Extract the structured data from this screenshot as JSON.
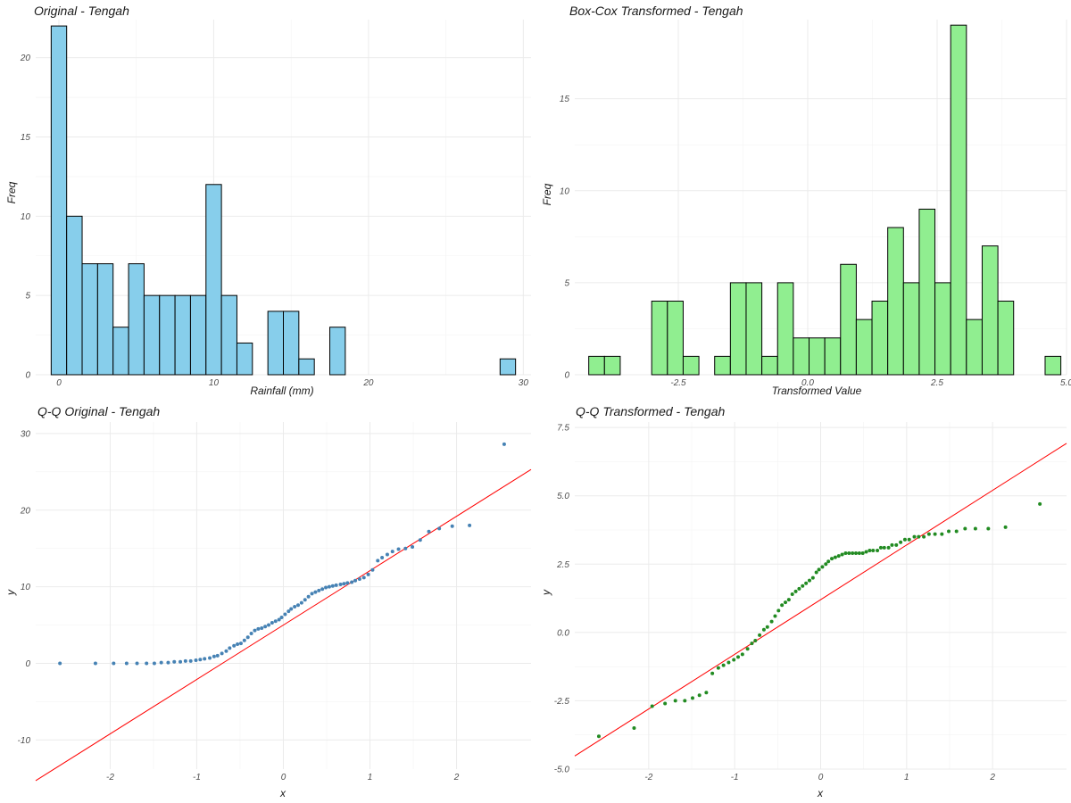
{
  "chart_data": [
    {
      "id": "hist-original",
      "type": "bar",
      "title": "Original - Tengah",
      "xlabel": "Rainfall (mm)",
      "ylabel": "Freq",
      "fill_color": "#87CEEB",
      "bin_width": 1.0,
      "bins_start": -0.5,
      "values": [
        22,
        10,
        7,
        7,
        3,
        7,
        5,
        5,
        5,
        5,
        12,
        5,
        2,
        0,
        4,
        4,
        1,
        0,
        3,
        0,
        0,
        0,
        0,
        0,
        0,
        0,
        0,
        0,
        0,
        1
      ],
      "xlim": [
        -1.5,
        30.5
      ],
      "ylim": [
        0,
        22.4
      ],
      "x_ticks": [
        0,
        10,
        20,
        30
      ],
      "x_tick_labels": [
        "0",
        "10",
        "20",
        "30"
      ],
      "y_ticks": [
        0,
        5,
        10,
        15,
        20
      ],
      "y_tick_labels": [
        "0",
        "5",
        "10",
        "15",
        "20"
      ],
      "grid": true
    },
    {
      "id": "hist-transformed",
      "type": "bar",
      "title": "Box-Cox Transformed - Tengah",
      "xlabel": "Transformed Value",
      "ylabel": "Freq",
      "fill_color": "#90EE90",
      "bin_width": 0.304,
      "bins_start": -4.23,
      "values": [
        1,
        1,
        0,
        0,
        4,
        4,
        1,
        0,
        1,
        5,
        5,
        1,
        5,
        2,
        2,
        2,
        6,
        3,
        4,
        8,
        5,
        9,
        5,
        19,
        3,
        7,
        4,
        0,
        0,
        1
      ],
      "xlim": [
        -4.5,
        5.0
      ],
      "ylim": [
        0,
        19.3
      ],
      "x_ticks": [
        -2.5,
        0.0,
        2.5,
        5.0
      ],
      "x_tick_labels": [
        "-2.5",
        "0.0",
        "2.5",
        "5.0"
      ],
      "y_ticks": [
        0,
        5,
        10,
        15
      ],
      "y_tick_labels": [
        "0",
        "5",
        "10",
        "15"
      ],
      "grid": true
    },
    {
      "id": "qq-original",
      "type": "scatter",
      "title": "Q-Q Original - Tengah",
      "xlabel": "x",
      "ylabel": "y",
      "point_color": "#4682B4",
      "line_color": "#FF0000",
      "line": {
        "intercept": 5.0,
        "slope": 7.1
      },
      "series": [
        {
          "x": [
            -2.58,
            -2.17,
            -1.96,
            -1.81,
            -1.69,
            -1.58,
            -1.49,
            -1.41,
            -1.33,
            -1.26,
            -1.19,
            -1.13,
            -1.07,
            -1.01,
            -0.96,
            -0.91,
            -0.85,
            -0.8,
            -0.76,
            -0.71,
            -0.66,
            -0.62,
            -0.57,
            -0.53,
            -0.49,
            -0.45,
            -0.41,
            -0.37,
            -0.33,
            -0.29,
            -0.25,
            -0.21,
            -0.17,
            -0.13,
            -0.09,
            -0.05,
            -0.02,
            0.02,
            0.06,
            0.09,
            0.13,
            0.17,
            0.21,
            0.25,
            0.29,
            0.33,
            0.37,
            0.41,
            0.45,
            0.49,
            0.53,
            0.57,
            0.61,
            0.66,
            0.7,
            0.74,
            0.79,
            0.83,
            0.88,
            0.93,
            0.98,
            1.03,
            1.09,
            1.14,
            1.2,
            1.26,
            1.33,
            1.41,
            1.49,
            1.58,
            1.68,
            1.8,
            1.95,
            2.15,
            2.55
          ],
          "y": [
            0.0,
            0.0,
            0.0,
            0.0,
            0.0,
            0.0,
            0.0,
            0.1,
            0.1,
            0.2,
            0.2,
            0.3,
            0.3,
            0.4,
            0.5,
            0.6,
            0.7,
            0.9,
            1.0,
            1.3,
            1.6,
            2.0,
            2.3,
            2.5,
            2.6,
            3.0,
            3.4,
            3.9,
            4.3,
            4.5,
            4.6,
            4.8,
            5.0,
            5.3,
            5.5,
            5.7,
            6.0,
            6.4,
            6.8,
            7.1,
            7.4,
            7.6,
            7.9,
            8.3,
            8.7,
            9.1,
            9.3,
            9.5,
            9.7,
            9.9,
            10.0,
            10.1,
            10.2,
            10.3,
            10.4,
            10.5,
            10.6,
            10.8,
            11.0,
            11.2,
            11.6,
            12.2,
            13.4,
            13.8,
            14.2,
            14.6,
            14.9,
            15.0,
            15.2,
            16.1,
            17.2,
            17.6,
            17.9,
            18.0,
            28.6
          ]
        }
      ],
      "xlim": [
        -2.86,
        2.86
      ],
      "ylim": [
        -13.8,
        31.5
      ],
      "x_ticks": [
        -2,
        -1,
        0,
        1,
        2
      ],
      "x_tick_labels": [
        "-2",
        "-1",
        "0",
        "1",
        "2"
      ],
      "y_ticks": [
        -10,
        0,
        10,
        20,
        30
      ],
      "y_tick_labels": [
        "-10",
        "0",
        "10",
        "20",
        "30"
      ],
      "grid": true
    },
    {
      "id": "qq-transformed",
      "type": "scatter",
      "title": "Q-Q Transformed - Tengah",
      "xlabel": "x",
      "ylabel": "y",
      "point_color": "#228B22",
      "line_color": "#FF0000",
      "line": {
        "intercept": 1.2,
        "slope": 2.0
      },
      "series": [
        {
          "x": [
            -2.58,
            -2.17,
            -1.96,
            -1.81,
            -1.69,
            -1.58,
            -1.49,
            -1.41,
            -1.33,
            -1.26,
            -1.19,
            -1.13,
            -1.07,
            -1.01,
            -0.96,
            -0.91,
            -0.85,
            -0.8,
            -0.76,
            -0.71,
            -0.66,
            -0.62,
            -0.57,
            -0.53,
            -0.49,
            -0.45,
            -0.41,
            -0.37,
            -0.33,
            -0.29,
            -0.25,
            -0.21,
            -0.17,
            -0.13,
            -0.09,
            -0.05,
            -0.02,
            0.02,
            0.06,
            0.09,
            0.13,
            0.17,
            0.21,
            0.25,
            0.29,
            0.33,
            0.37,
            0.41,
            0.45,
            0.49,
            0.53,
            0.57,
            0.61,
            0.66,
            0.7,
            0.74,
            0.79,
            0.83,
            0.88,
            0.93,
            0.98,
            1.03,
            1.09,
            1.14,
            1.2,
            1.26,
            1.33,
            1.41,
            1.49,
            1.58,
            1.68,
            1.8,
            1.95,
            2.15,
            2.55
          ],
          "y": [
            -3.8,
            -3.5,
            -2.7,
            -2.6,
            -2.5,
            -2.5,
            -2.4,
            -2.3,
            -2.2,
            -1.5,
            -1.3,
            -1.2,
            -1.1,
            -1.0,
            -0.9,
            -0.8,
            -0.6,
            -0.4,
            -0.3,
            -0.1,
            0.1,
            0.2,
            0.4,
            0.6,
            0.8,
            1.0,
            1.1,
            1.2,
            1.4,
            1.5,
            1.6,
            1.7,
            1.8,
            1.9,
            2.0,
            2.2,
            2.3,
            2.4,
            2.5,
            2.6,
            2.7,
            2.75,
            2.8,
            2.85,
            2.9,
            2.9,
            2.9,
            2.9,
            2.9,
            2.9,
            2.95,
            3.0,
            3.0,
            3.0,
            3.1,
            3.1,
            3.1,
            3.2,
            3.2,
            3.3,
            3.4,
            3.4,
            3.5,
            3.5,
            3.5,
            3.6,
            3.6,
            3.6,
            3.7,
            3.7,
            3.8,
            3.8,
            3.8,
            3.85,
            4.7
          ]
        }
      ],
      "xlim": [
        -2.86,
        2.86
      ],
      "ylim": [
        -5.0,
        7.7
      ],
      "x_ticks": [
        -2,
        -1,
        0,
        1,
        2
      ],
      "x_tick_labels": [
        "-2",
        "-1",
        "0",
        "1",
        "2"
      ],
      "y_ticks": [
        -5.0,
        -2.5,
        0.0,
        2.5,
        5.0,
        7.5
      ],
      "y_tick_labels": [
        "-5.0",
        "-2.5",
        "0.0",
        "2.5",
        "5.0",
        "7.5"
      ],
      "grid": true
    }
  ]
}
